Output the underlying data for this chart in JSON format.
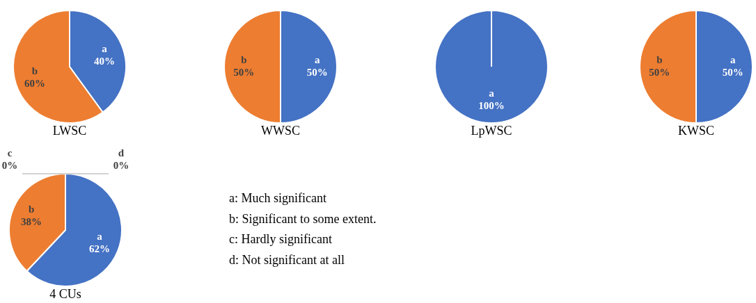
{
  "chart_data": [
    {
      "type": "pie",
      "title": "LWSC",
      "categories": [
        "a",
        "b"
      ],
      "values": [
        40,
        60
      ],
      "colors": [
        "#4472c4",
        "#ed7d31"
      ],
      "value_labels": [
        "40%",
        "60%"
      ]
    },
    {
      "type": "pie",
      "title": "WWSC",
      "categories": [
        "a",
        "b"
      ],
      "values": [
        50,
        50
      ],
      "colors": [
        "#4472c4",
        "#ed7d31"
      ],
      "value_labels": [
        "50%",
        "50%"
      ]
    },
    {
      "type": "pie",
      "title": "LpWSC",
      "categories": [
        "a"
      ],
      "values": [
        100
      ],
      "colors": [
        "#4472c4"
      ],
      "value_labels": [
        "100%"
      ]
    },
    {
      "type": "pie",
      "title": "KWSC",
      "categories": [
        "a",
        "b"
      ],
      "values": [
        50,
        50
      ],
      "colors": [
        "#4472c4",
        "#ed7d31"
      ],
      "value_labels": [
        "50%",
        "50%"
      ]
    },
    {
      "type": "pie",
      "title": "4 CUs",
      "categories": [
        "a",
        "b",
        "c",
        "d"
      ],
      "values": [
        62,
        38,
        0,
        0
      ],
      "colors": [
        "#4472c4",
        "#ed7d31",
        "#a5a5a5",
        "#ffc000"
      ],
      "value_labels": [
        "62%",
        "38%",
        "0%",
        "0%"
      ],
      "annotations": [
        "a: Much significant",
        "b: Significant to some extent.",
        "c: Hardly significant",
        "d: Not significant at all"
      ]
    }
  ]
}
